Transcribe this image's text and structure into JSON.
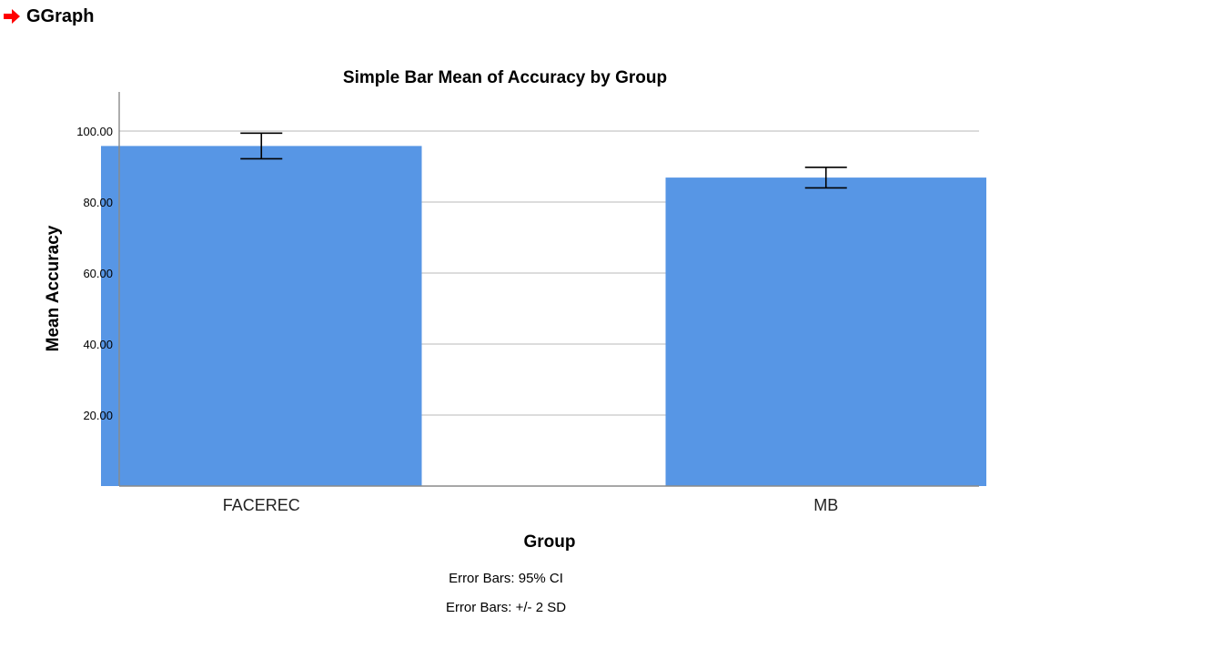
{
  "header": {
    "title": "GGraph",
    "arrow_icon": "red-arrow-icon",
    "arrow_color": "#ff0000"
  },
  "chart_data": {
    "type": "bar",
    "title": "Simple Bar Mean of Accuracy by Group",
    "xlabel": "Group",
    "ylabel": "Mean Accuracy",
    "categories": [
      "FACEREC",
      "MB"
    ],
    "values": [
      95.8,
      86.9
    ],
    "error_bars": [
      {
        "low": 92.2,
        "high": 99.4
      },
      {
        "low": 84.0,
        "high": 89.8
      }
    ],
    "ylim": [
      0,
      110
    ],
    "yticks": [
      20,
      40,
      60,
      80,
      100
    ],
    "ytick_labels": [
      "20.00",
      "40.00",
      "60.00",
      "80.00",
      "100.00"
    ],
    "grid": true,
    "bar_color": "#5796e5",
    "footnotes": [
      "Error Bars: 95% CI",
      "Error Bars: +/- 2 SD"
    ]
  }
}
